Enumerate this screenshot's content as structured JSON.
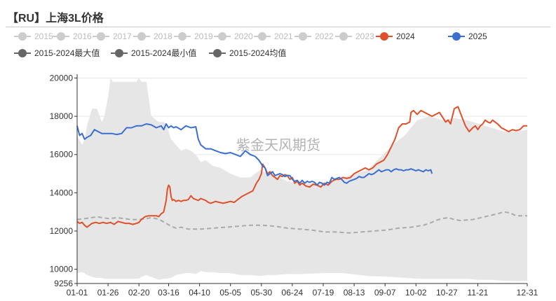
{
  "title": "【RU】上海3L价格",
  "watermark": "紫金天风期货",
  "legend": [
    {
      "label": "2015",
      "color": "#cccccc",
      "active": false
    },
    {
      "label": "2016",
      "color": "#cccccc",
      "active": false
    },
    {
      "label": "2017",
      "color": "#cccccc",
      "active": false
    },
    {
      "label": "2018",
      "color": "#cccccc",
      "active": false
    },
    {
      "label": "2019",
      "color": "#cccccc",
      "active": false
    },
    {
      "label": "2020",
      "color": "#cccccc",
      "active": false
    },
    {
      "label": "2021",
      "color": "#cccccc",
      "active": false
    },
    {
      "label": "2022",
      "color": "#cccccc",
      "active": false
    },
    {
      "label": "2023",
      "color": "#cccccc",
      "active": false
    },
    {
      "label": "2024",
      "color": "#e0502a",
      "active": true
    },
    {
      "label": "2025",
      "color": "#3a6fd0",
      "active": true
    },
    {
      "label": "2015-2024最大值",
      "color": "#666666",
      "active": true
    },
    {
      "label": "2015-2024最小值",
      "color": "#666666",
      "active": true
    },
    {
      "label": "2015-2024均值",
      "color": "#666666",
      "active": true
    }
  ],
  "chart_data": {
    "type": "line",
    "title": "【RU】上海3L价格",
    "x_ticks": [
      "01-01",
      "01-26",
      "02-20",
      "03-16",
      "04-10",
      "05-05",
      "05-30",
      "06-24",
      "07-19",
      "08-13",
      "09-07",
      "10-02",
      "10-27",
      "11-21",
      "12-31"
    ],
    "x_tick_days": [
      0,
      25,
      50,
      74,
      99,
      124,
      149,
      174,
      199,
      224,
      249,
      274,
      299,
      324,
      364
    ],
    "y_ticks": [
      20000,
      18000,
      16000,
      14000,
      12000,
      10000,
      9256
    ],
    "ylim": [
      9256,
      20200
    ],
    "xlim": [
      0,
      364
    ],
    "grid": true,
    "colors": {
      "2024": "#e0502a",
      "2025": "#3a6fd0",
      "range_fill": "#e6e6e6",
      "mean": "#aaaaaa"
    },
    "range_band": {
      "name": "2015-2024最大值 / 2015-2024最小值",
      "x": [
        0,
        4,
        6,
        8,
        12,
        16,
        20,
        22,
        25,
        27,
        29,
        31,
        40,
        44,
        48,
        50,
        52,
        56,
        60,
        64,
        66,
        70,
        72,
        76,
        80,
        84,
        88,
        92,
        96,
        100,
        104,
        110,
        116,
        124,
        132,
        140,
        148,
        154,
        160,
        170,
        180,
        200,
        215,
        235,
        255,
        265,
        275,
        285,
        295,
        305,
        315,
        325,
        335,
        345,
        355,
        364
      ],
      "max": [
        17000,
        16500,
        16800,
        17500,
        18400,
        18400,
        17700,
        18000,
        19000,
        20000,
        19800,
        19800,
        19800,
        19800,
        19800,
        20000,
        19800,
        19800,
        18000,
        17800,
        17700,
        17700,
        17600,
        16800,
        16500,
        16200,
        16300,
        16200,
        16000,
        15600,
        15700,
        15400,
        15300,
        15000,
        14800,
        14800,
        15200,
        15000,
        14900,
        14600,
        14500,
        14500,
        14800,
        15200,
        16500,
        17000,
        17800,
        18000,
        17800,
        17900,
        17800,
        17600,
        17400,
        17200,
        17200,
        17300
      ],
      "min": [
        9800,
        9850,
        9800,
        9700,
        9600,
        9550,
        9550,
        9500,
        9500,
        9500,
        9500,
        9500,
        9500,
        9500,
        9500,
        9500,
        9600,
        9700,
        9600,
        9500,
        9450,
        9500,
        9500,
        9550,
        9700,
        9750,
        9800,
        9800,
        9750,
        9900,
        9850,
        9850,
        9800,
        9800,
        9700,
        9700,
        9650,
        9700,
        9700,
        9750,
        9750,
        9800,
        9800,
        9650,
        9600,
        9550,
        9500,
        9500,
        9500,
        9500,
        9500,
        9450,
        9450,
        9400,
        9380,
        9380
      ]
    },
    "series": [
      {
        "name": "2015-2024均值",
        "style": "dashed",
        "x": [
          0,
          6,
          12,
          16,
          20,
          26,
          32,
          38,
          44,
          50,
          56,
          60,
          64,
          68,
          72,
          76,
          80,
          84,
          90,
          100,
          110,
          120,
          130,
          140,
          150,
          160,
          170,
          180,
          190,
          200,
          210,
          220,
          230,
          240,
          250,
          260,
          270,
          280,
          285,
          290,
          295,
          300,
          305,
          310,
          320,
          330,
          340,
          345,
          350,
          355,
          364
        ],
        "values": [
          12600,
          12650,
          12700,
          12750,
          12700,
          12650,
          12700,
          12650,
          12600,
          12600,
          12650,
          12700,
          12650,
          12550,
          12400,
          12250,
          12150,
          12200,
          12100,
          12100,
          12150,
          12200,
          12250,
          12300,
          12300,
          12250,
          12150,
          12100,
          12050,
          11950,
          11950,
          11900,
          11950,
          12000,
          12050,
          12150,
          12200,
          12300,
          12400,
          12550,
          12650,
          12700,
          12600,
          12550,
          12600,
          12750,
          12900,
          13000,
          12950,
          12800,
          12800
        ]
      },
      {
        "name": "2024",
        "style": "solid",
        "x": [
          0,
          2,
          4,
          6,
          8,
          10,
          12,
          15,
          18,
          21,
          24,
          27,
          30,
          33,
          36,
          39,
          42,
          45,
          48,
          50,
          52,
          55,
          58,
          61,
          64,
          66,
          68,
          70,
          72,
          73,
          74,
          75,
          76,
          77,
          78,
          80,
          82,
          84,
          86,
          88,
          90,
          92,
          94,
          96,
          98,
          100,
          102,
          104,
          106,
          108,
          110,
          112,
          115,
          118,
          121,
          124,
          127,
          130,
          133,
          136,
          139,
          142,
          145,
          147,
          149,
          150,
          151,
          152,
          154,
          156,
          158,
          160,
          162,
          164,
          166,
          168,
          170,
          172,
          174,
          176,
          178,
          180,
          182,
          185,
          188,
          191,
          194,
          197,
          200,
          203,
          206,
          209,
          212,
          215,
          218,
          221,
          224,
          227,
          230,
          233,
          236,
          239,
          242,
          245,
          248,
          251,
          254,
          257,
          260,
          263,
          266,
          269,
          270,
          272,
          275,
          278,
          281,
          284,
          287,
          290,
          293,
          296,
          298,
          300,
          302,
          305,
          308,
          311,
          314,
          317,
          320,
          322,
          324,
          326,
          328,
          330,
          332,
          334,
          336,
          338,
          340,
          343,
          346,
          349,
          352,
          355,
          358,
          361,
          364
        ],
        "values": [
          12500,
          12400,
          12450,
          12300,
          12200,
          12300,
          12400,
          12450,
          12400,
          12450,
          12400,
          12450,
          12350,
          12500,
          12450,
          12400,
          12400,
          12350,
          12400,
          12450,
          12600,
          12750,
          12800,
          12800,
          12800,
          12750,
          12900,
          13000,
          13600,
          14200,
          14400,
          14300,
          13800,
          13600,
          13650,
          13550,
          13600,
          13550,
          13600,
          13600,
          13650,
          13850,
          13700,
          13650,
          13600,
          13700,
          13650,
          13600,
          13500,
          13450,
          13500,
          13550,
          13500,
          13450,
          13500,
          13550,
          13500,
          13650,
          13800,
          13900,
          14000,
          14100,
          14500,
          14700,
          15000,
          15500,
          15400,
          15300,
          15000,
          15100,
          14900,
          14800,
          14700,
          14900,
          14850,
          14950,
          14900,
          14700,
          14800,
          14500,
          14600,
          14400,
          14500,
          14350,
          14300,
          14450,
          14400,
          14300,
          14500,
          14400,
          14600,
          14700,
          14700,
          14800,
          14750,
          14800,
          15000,
          15100,
          15200,
          15300,
          15200,
          15300,
          15500,
          15600,
          15700,
          16000,
          16400,
          16800,
          17400,
          17600,
          17600,
          17700,
          18200,
          18300,
          18100,
          18300,
          18200,
          18100,
          18000,
          18100,
          18200,
          17900,
          17700,
          17800,
          17600,
          18400,
          18500,
          18000,
          17500,
          17200,
          17400,
          17500,
          17300,
          17500,
          17600,
          17800,
          17700,
          17650,
          17800,
          17700,
          17600,
          17400,
          17300,
          17200,
          17300,
          17250,
          17300,
          17500,
          17500
        ]
      },
      {
        "name": "2025",
        "style": "solid",
        "x": [
          0,
          2,
          4,
          6,
          8,
          11,
          14,
          17,
          20,
          24,
          28,
          32,
          36,
          40,
          44,
          48,
          52,
          56,
          60,
          64,
          68,
          70,
          72,
          74,
          76,
          78,
          80,
          84,
          88,
          92,
          96,
          98,
          100,
          102,
          104,
          108,
          112,
          116,
          120,
          124,
          128,
          132,
          136,
          140,
          144,
          147,
          150,
          152,
          154,
          156,
          158,
          160,
          162,
          164,
          166,
          168,
          170,
          172,
          174,
          176,
          178,
          180,
          182,
          184,
          186,
          188,
          190,
          192,
          194,
          196,
          198,
          200,
          202,
          204,
          206,
          208,
          210,
          212,
          214,
          216,
          218,
          220,
          222,
          224,
          226,
          228,
          230,
          232,
          234,
          236,
          238,
          240,
          242,
          244,
          246,
          248,
          250,
          252,
          254,
          256,
          258,
          260,
          262,
          264,
          266,
          268,
          270,
          272,
          274,
          276,
          278,
          280,
          282,
          284,
          286,
          287
        ],
        "values": [
          17500,
          17000,
          17100,
          16800,
          16900,
          17000,
          17300,
          17200,
          17100,
          17100,
          17100,
          17050,
          17100,
          17400,
          17400,
          17500,
          17500,
          17600,
          17550,
          17400,
          17500,
          17300,
          17600,
          17400,
          17500,
          17400,
          17450,
          17300,
          17500,
          17400,
          17450,
          16800,
          16500,
          16400,
          16300,
          16300,
          16200,
          16100,
          16050,
          16100,
          16000,
          15900,
          16200,
          16000,
          15900,
          15700,
          15400,
          15300,
          14900,
          15000,
          15100,
          14900,
          14950,
          15000,
          14950,
          14850,
          14900,
          14900,
          14700,
          14600,
          14650,
          14500,
          14650,
          14500,
          14600,
          14550,
          14600,
          14550,
          14400,
          14550,
          14500,
          14400,
          14550,
          14500,
          14800,
          14700,
          14750,
          14800,
          14700,
          14550,
          14500,
          14600,
          14650,
          14700,
          14750,
          14850,
          14800,
          14800,
          14900,
          15000,
          14950,
          15000,
          15100,
          15200,
          15100,
          15150,
          15200,
          15200,
          15100,
          15200,
          15250,
          15200,
          15200,
          15150,
          15200,
          15200,
          15250,
          15200,
          15150,
          15200,
          15150,
          15100,
          15200,
          15150,
          15200,
          15000
        ]
      }
    ]
  }
}
